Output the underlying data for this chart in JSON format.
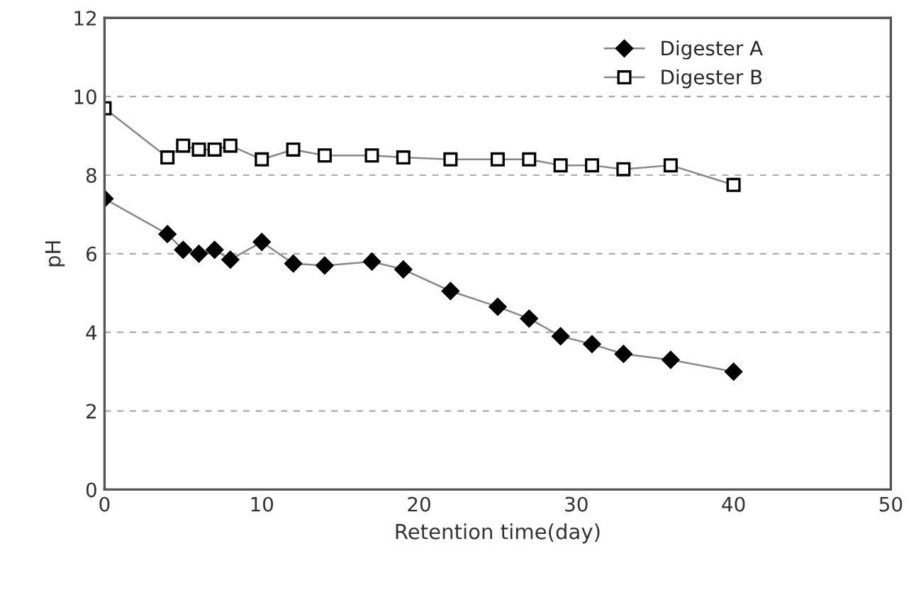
{
  "chart_data": {
    "type": "line",
    "xlabel": "Retention time(day)",
    "ylabel": "pH",
    "xlim": [
      0,
      50
    ],
    "xticks": [
      0,
      10,
      20,
      30,
      40,
      50
    ],
    "ylim": [
      0,
      12
    ],
    "yticks": [
      0,
      2,
      4,
      6,
      8,
      10,
      12
    ],
    "grid": "y",
    "legend": "top right",
    "series": [
      {
        "name": "Digester A",
        "color": "#000000",
        "marker": "diamond",
        "x": [
          0,
          4,
          5,
          6,
          7,
          8,
          10,
          12,
          14,
          17,
          19,
          22,
          25,
          27,
          29,
          31,
          33,
          36,
          40
        ],
        "values": [
          7.4,
          6.5,
          6.1,
          6.0,
          6.1,
          5.85,
          6.3,
          5.75,
          5.7,
          5.8,
          5.6,
          5.05,
          4.65,
          4.35,
          3.9,
          3.7,
          3.45,
          3.3,
          3.0
        ]
      },
      {
        "name": "Digester B",
        "color": "#000000",
        "marker": "square",
        "x": [
          0,
          4,
          5,
          6,
          7,
          8,
          10,
          12,
          14,
          17,
          19,
          22,
          25,
          27,
          29,
          31,
          33,
          36,
          40
        ],
        "values": [
          9.7,
          8.45,
          8.75,
          8.65,
          8.65,
          8.75,
          8.4,
          8.65,
          8.5,
          8.5,
          8.45,
          8.4,
          8.4,
          8.4,
          8.25,
          8.25,
          8.15,
          8.25,
          7.75
        ]
      }
    ]
  }
}
